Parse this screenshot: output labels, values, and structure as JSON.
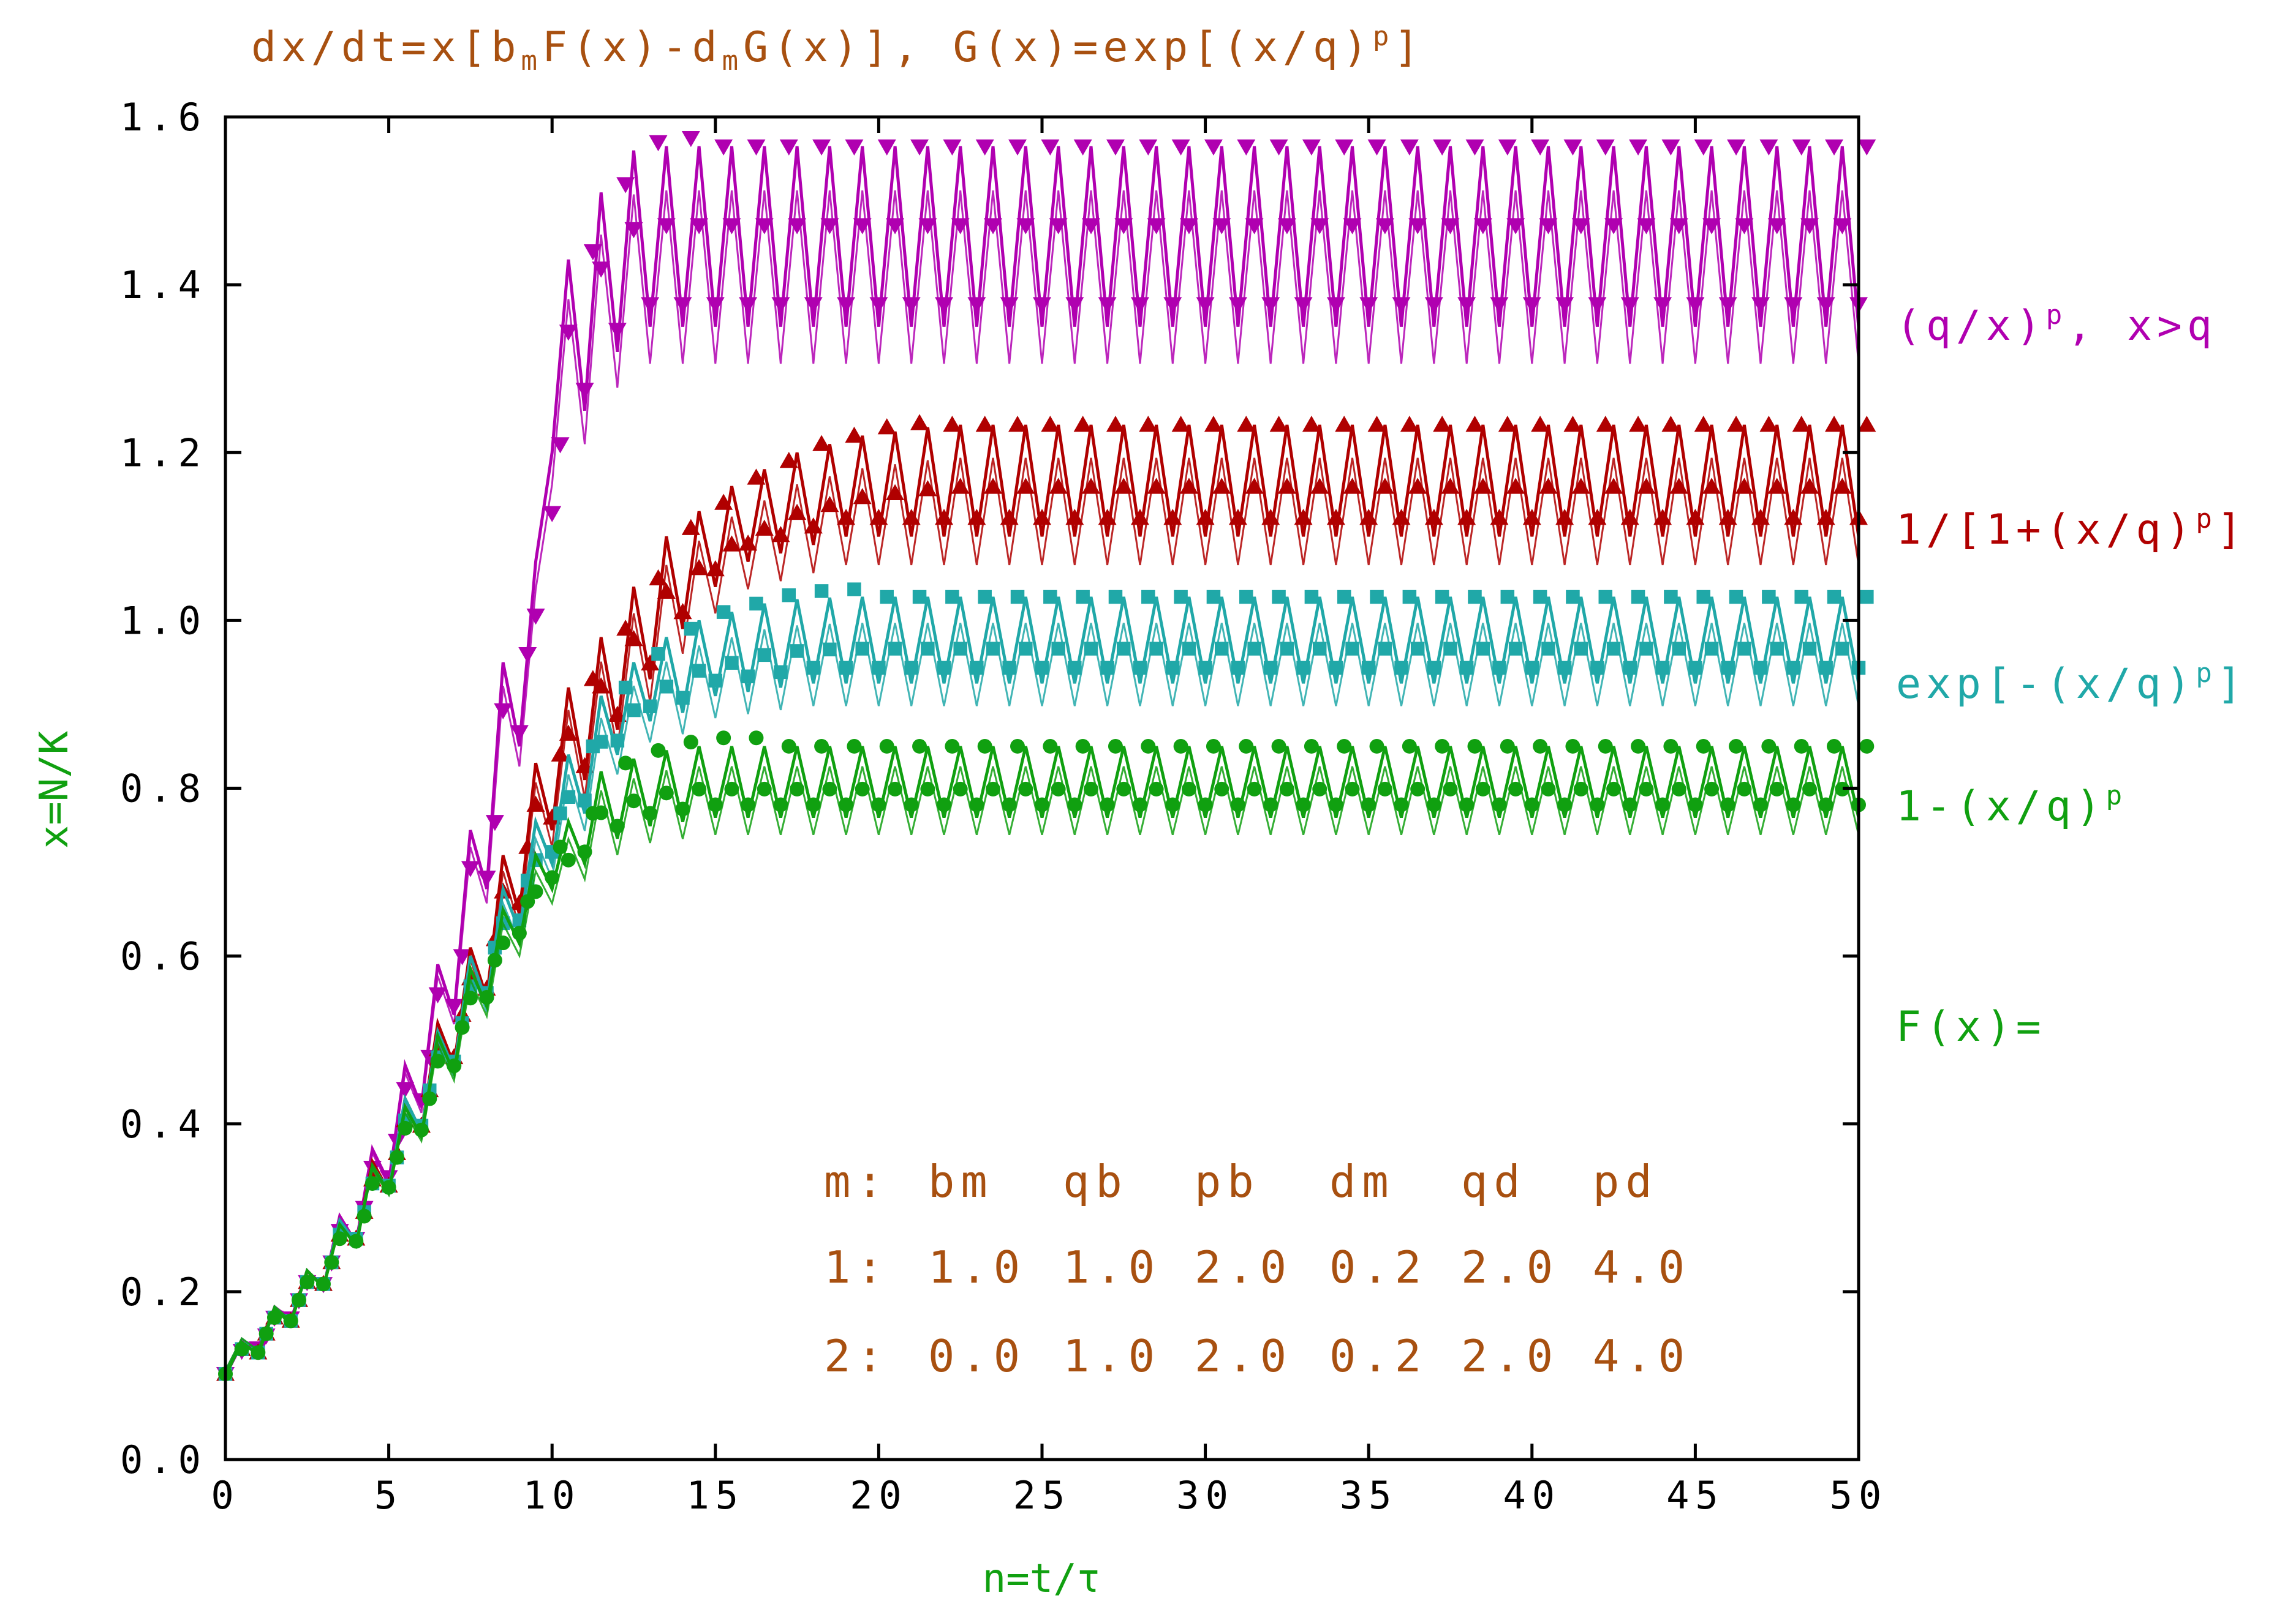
{
  "chart_data": {
    "type": "line",
    "title": "dx/dt=x[b_mF(x)-d_mG(x)],  G(x)=exp[(x/q)^p]",
    "title_parts": {
      "p1": "dx/dt=x[b",
      "s1": "m",
      "p2": "F(x)-d",
      "s2": "m",
      "p3": "G(x)],  G(x)=exp[(x/q)",
      "s3": "p",
      "p4": "]"
    },
    "xlabel": "n=t/τ",
    "ylabel": "x=N/K",
    "xlim": [
      0,
      50
    ],
    "ylim": [
      0,
      1.6
    ],
    "xticks": [
      0,
      5,
      10,
      15,
      20,
      25,
      30,
      35,
      40,
      45,
      50
    ],
    "yticks": [
      "0.0",
      "0.2",
      "0.4",
      "0.6",
      "0.8",
      "1.0",
      "1.2",
      "1.4",
      "1.6"
    ],
    "grid": false,
    "legend_heading": "F(x)=",
    "series": [
      {
        "name": "(q/x)^p, x>q",
        "label_main": "(q/x)",
        "label_sup": "p",
        "label_tail": ",  x>q",
        "color": "#b000b0",
        "marker": "triangle-down",
        "pred": [
          0.1,
          0.138,
          0.13,
          0.18,
          0.165,
          0.225,
          0.205,
          0.29,
          0.258,
          0.37,
          0.33,
          0.47,
          0.42,
          0.59,
          0.53,
          0.75,
          0.68,
          0.95,
          0.85,
          1.07,
          1.2,
          1.43,
          1.25,
          1.51,
          1.32,
          1.56,
          1.35,
          1.565,
          1.35,
          1.565
        ],
        "steady_max": 1.565,
        "steady_min": 1.35
      },
      {
        "name": "1/[1+(x/q)^p]",
        "label_main": "1/[1+(x/q)",
        "label_sup": "p",
        "label_tail": "]",
        "color": "#b00000",
        "marker": "triangle-up",
        "pred": [
          0.1,
          0.14,
          0.125,
          0.18,
          0.162,
          0.225,
          0.205,
          0.285,
          0.258,
          0.355,
          0.32,
          0.43,
          0.39,
          0.52,
          0.47,
          0.61,
          0.55,
          0.72,
          0.65,
          0.83,
          0.75,
          0.92,
          0.81,
          0.98,
          0.87,
          1.04,
          0.93,
          1.1,
          0.99,
          1.13,
          1.04,
          1.16,
          1.07,
          1.18,
          1.08,
          1.2,
          1.09,
          1.21,
          1.1,
          1.22,
          1.1,
          1.225,
          1.1,
          1.23
        ],
        "steady_max": 1.233,
        "steady_min": 1.1
      },
      {
        "name": "exp[-(x/q)^p]",
        "label_main": "exp[-(x/q)",
        "label_sup": "p",
        "label_tail": "]",
        "color": "#20a8a8",
        "marker": "square",
        "pred": [
          0.1,
          0.14,
          0.125,
          0.18,
          0.162,
          0.225,
          0.205,
          0.285,
          0.258,
          0.35,
          0.32,
          0.43,
          0.39,
          0.51,
          0.465,
          0.6,
          0.545,
          0.68,
          0.63,
          0.76,
          0.71,
          0.84,
          0.77,
          0.91,
          0.84,
          0.95,
          0.88,
          0.98,
          0.89,
          1.0,
          0.91,
          1.01,
          0.915,
          1.02,
          0.92,
          1.025,
          0.925,
          1.027,
          0.925,
          1.028
        ],
        "steady_max": 1.028,
        "steady_min": 0.925
      },
      {
        "name": "1-(x/q)^p",
        "label_main": "1-(x/q)",
        "label_sup": "p",
        "label_tail": "",
        "color": "#10a010",
        "marker": "circle",
        "pred": [
          0.1,
          0.14,
          0.125,
          0.18,
          0.162,
          0.225,
          0.205,
          0.28,
          0.255,
          0.35,
          0.318,
          0.42,
          0.385,
          0.505,
          0.46,
          0.585,
          0.54,
          0.655,
          0.615,
          0.72,
          0.68,
          0.76,
          0.71,
          0.82,
          0.74,
          0.835,
          0.755,
          0.845,
          0.76,
          0.85,
          0.765,
          0.85,
          0.765,
          0.85
        ],
        "steady_max": 0.85,
        "steady_min": 0.765
      }
    ],
    "params_table": {
      "header": [
        "m:",
        "bm",
        "qb",
        "pb",
        "dm",
        "qd",
        "pd"
      ],
      "rows": [
        [
          "1:",
          "1.0",
          "1.0",
          "2.0",
          "0.2",
          "2.0",
          "4.0"
        ],
        [
          "2:",
          "0.0",
          "1.0",
          "2.0",
          "0.2",
          "2.0",
          "4.0"
        ]
      ]
    },
    "colors": {
      "title": "#a85010",
      "axis_label": "#10a010",
      "axes": "#000000",
      "params": "#a85010"
    }
  }
}
